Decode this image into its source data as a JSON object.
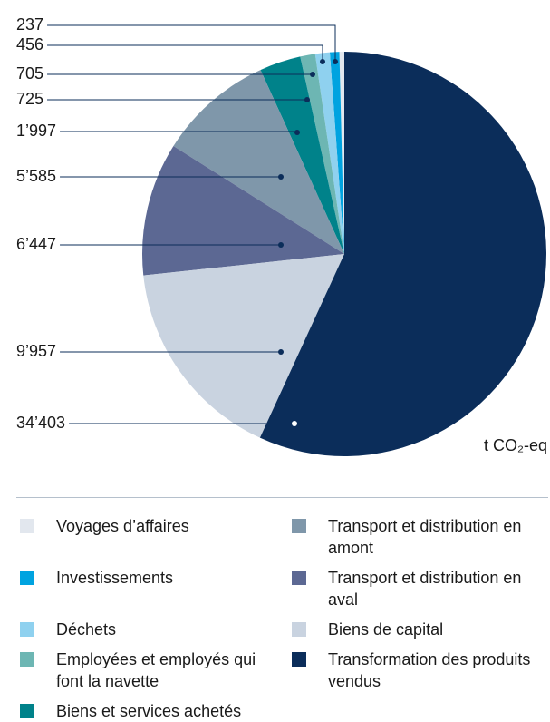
{
  "chart_data": {
    "type": "pie",
    "categories": [
      "Voyages d’affaires",
      "Investissements",
      "Déchets",
      "Employées et employés qui font la navette",
      "Biens et services achetés",
      "Transport et distribution en amont",
      "Transport et distribution en aval",
      "Biens de capital",
      "Transformation des produits vendus"
    ],
    "values": [
      237,
      456,
      705,
      725,
      1997,
      5585,
      6447,
      9957,
      34403
    ],
    "value_labels": [
      "237",
      "456",
      "705",
      "725",
      "1’997",
      "5’585",
      "6’447",
      "9’957",
      "34’403"
    ],
    "colors": [
      "#e2e7ee",
      "#00a3e0",
      "#8fd1ef",
      "#6db6b3",
      "#00828a",
      "#7f97aa",
      "#5c6893",
      "#c9d3e0",
      "#0b2d5a"
    ],
    "unit_label": "t CO₂-eq",
    "legend": "bottom"
  }
}
